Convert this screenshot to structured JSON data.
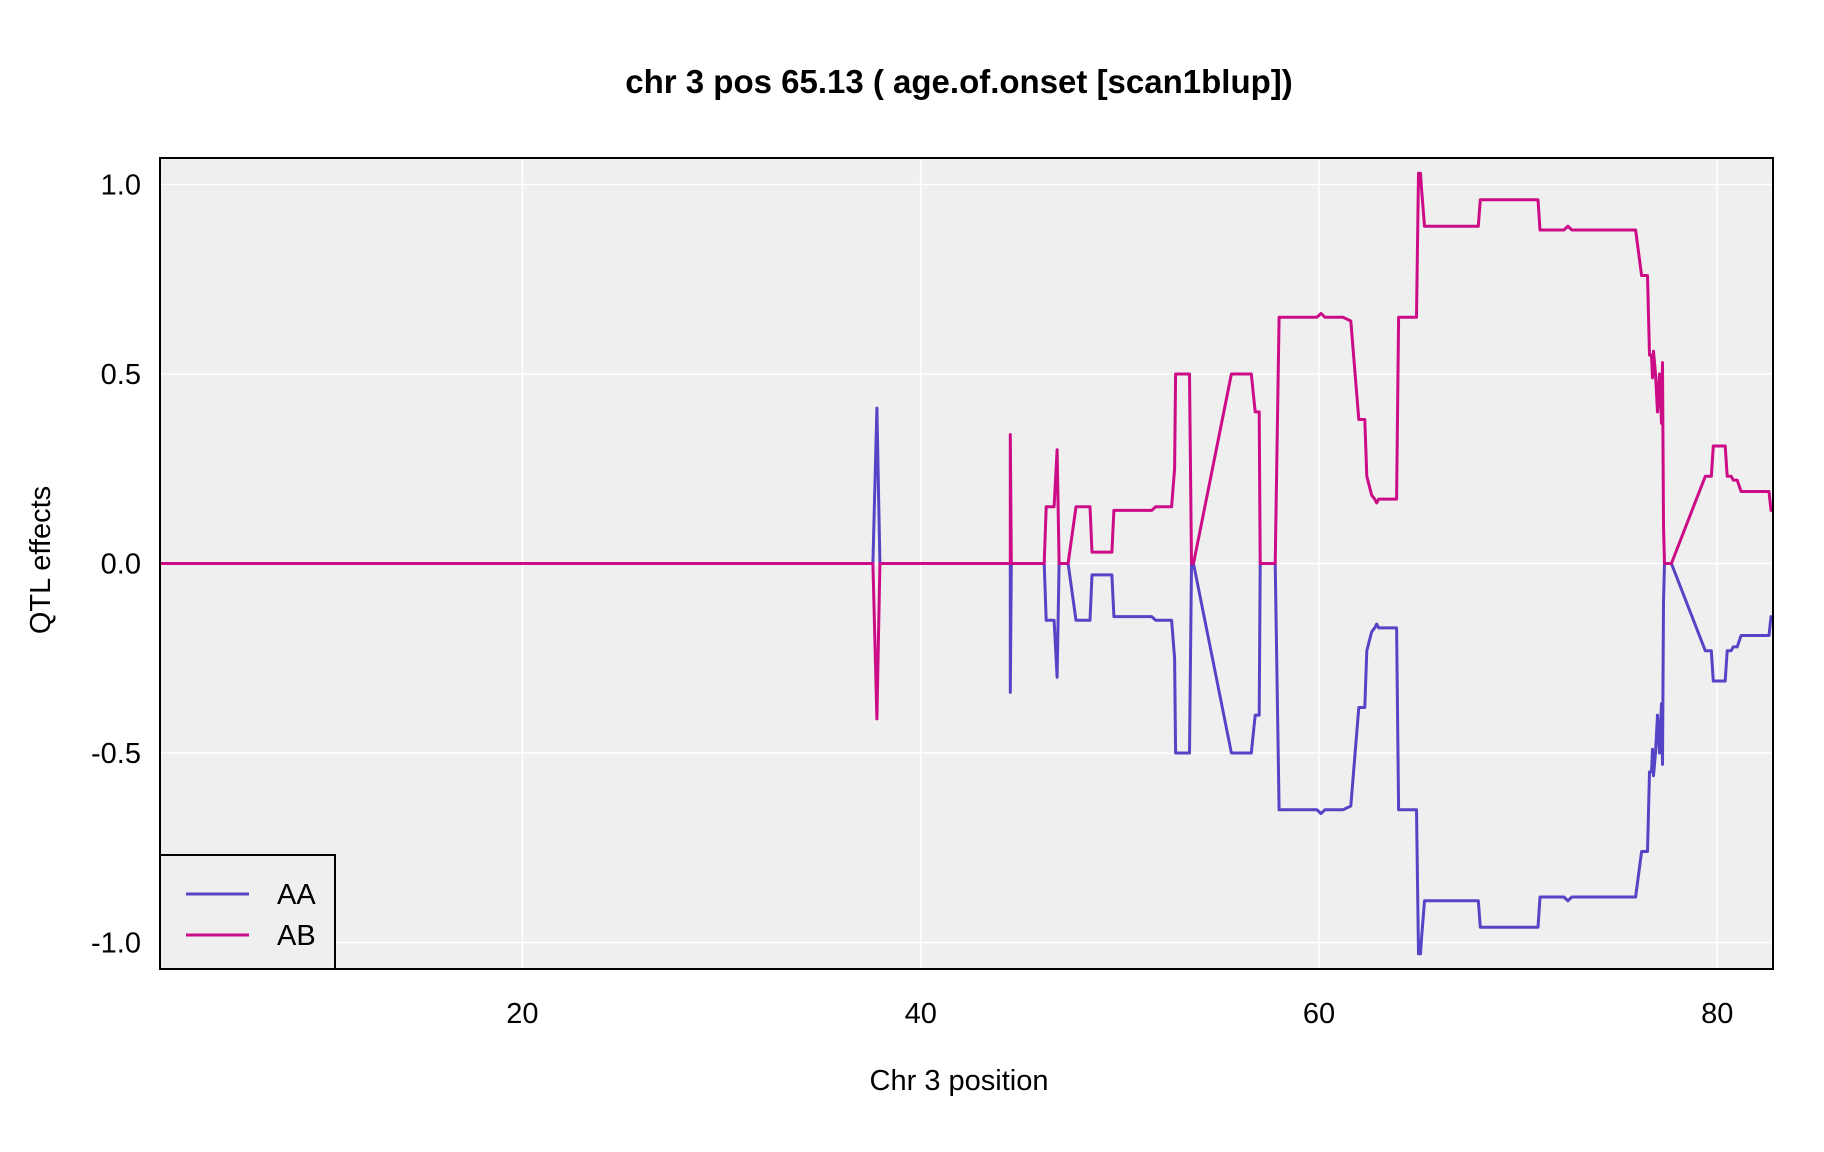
{
  "chart_data": {
    "type": "line",
    "title": "chr 3 pos 65.13 ( age.of.onset  [scan1blup])",
    "xlabel": "Chr 3 position",
    "ylabel": "QTL effects",
    "xlim": [
      1.8,
      82.8
    ],
    "ylim": [
      -1.07,
      1.07
    ],
    "x_ticks": [
      20,
      40,
      60,
      80
    ],
    "y_ticks": [
      -1.0,
      -0.5,
      0.0,
      0.5,
      1.0
    ],
    "y_tick_labels": [
      "-1.0",
      "-0.5",
      "0.0",
      "0.5",
      "1.0"
    ],
    "grid": true,
    "legend_position": "bottom-left",
    "background": "#efefef",
    "series": [
      {
        "name": "AA",
        "color": "#5544c5",
        "points": [
          [
            1.8,
            0
          ],
          [
            37.6,
            0
          ],
          [
            37.8,
            0.41
          ],
          [
            37.95,
            0
          ],
          [
            44.5,
            0
          ],
          [
            44.5,
            -0.34
          ],
          [
            44.55,
            0
          ],
          [
            46.2,
            0
          ],
          [
            46.3,
            -0.15
          ],
          [
            46.7,
            -0.15
          ],
          [
            46.85,
            -0.3
          ],
          [
            46.95,
            0
          ],
          [
            47.4,
            0
          ],
          [
            47.8,
            -0.15
          ],
          [
            48.5,
            -0.15
          ],
          [
            48.6,
            -0.03
          ],
          [
            49.6,
            -0.03
          ],
          [
            49.7,
            -0.14
          ],
          [
            51.6,
            -0.14
          ],
          [
            51.8,
            -0.15
          ],
          [
            52.6,
            -0.15
          ],
          [
            52.75,
            -0.25
          ],
          [
            52.8,
            -0.5
          ],
          [
            53.5,
            -0.5
          ],
          [
            53.6,
            0
          ],
          [
            53.7,
            0
          ],
          [
            55.6,
            -0.5
          ],
          [
            56.6,
            -0.5
          ],
          [
            56.8,
            -0.4
          ],
          [
            57.0,
            -0.4
          ],
          [
            57.05,
            0
          ],
          [
            57.8,
            0
          ],
          [
            58.0,
            -0.65
          ],
          [
            59.9,
            -0.65
          ],
          [
            60.1,
            -0.66
          ],
          [
            60.3,
            -0.65
          ],
          [
            61.2,
            -0.65
          ],
          [
            61.6,
            -0.64
          ],
          [
            62.0,
            -0.38
          ],
          [
            62.3,
            -0.38
          ],
          [
            62.4,
            -0.23
          ],
          [
            62.65,
            -0.18
          ],
          [
            62.8,
            -0.17
          ],
          [
            62.9,
            -0.16
          ],
          [
            63.0,
            -0.17
          ],
          [
            63.9,
            -0.17
          ],
          [
            64.0,
            -0.65
          ],
          [
            64.9,
            -0.65
          ],
          [
            65.0,
            -1.03
          ],
          [
            65.1,
            -1.03
          ],
          [
            65.15,
            -0.99
          ],
          [
            65.3,
            -0.89
          ],
          [
            66.5,
            -0.89
          ],
          [
            66.6,
            -0.89
          ],
          [
            68.0,
            -0.89
          ],
          [
            68.1,
            -0.96
          ],
          [
            71.0,
            -0.96
          ],
          [
            71.1,
            -0.88
          ],
          [
            72.3,
            -0.88
          ],
          [
            72.5,
            -0.89
          ],
          [
            72.7,
            -0.88
          ],
          [
            75.9,
            -0.88
          ],
          [
            76.2,
            -0.76
          ],
          [
            76.5,
            -0.76
          ],
          [
            76.6,
            -0.55
          ],
          [
            76.7,
            -0.55
          ],
          [
            76.75,
            -0.49
          ],
          [
            76.8,
            -0.56
          ],
          [
            76.9,
            -0.5
          ],
          [
            77.0,
            -0.4
          ],
          [
            77.1,
            -0.5
          ],
          [
            77.2,
            -0.37
          ],
          [
            77.25,
            -0.53
          ],
          [
            77.3,
            -0.1
          ],
          [
            77.35,
            0
          ],
          [
            77.7,
            0
          ],
          [
            79.4,
            -0.23
          ],
          [
            79.7,
            -0.23
          ],
          [
            79.8,
            -0.31
          ],
          [
            80.4,
            -0.31
          ],
          [
            80.5,
            -0.23
          ],
          [
            80.7,
            -0.23
          ],
          [
            80.8,
            -0.22
          ],
          [
            81.0,
            -0.22
          ],
          [
            81.2,
            -0.19
          ],
          [
            82.6,
            -0.19
          ],
          [
            82.7,
            -0.14
          ],
          [
            82.8,
            -0.14
          ]
        ]
      },
      {
        "name": "AB",
        "color": "#cc0c87",
        "points": [
          [
            1.8,
            0
          ],
          [
            37.6,
            0
          ],
          [
            37.8,
            -0.41
          ],
          [
            37.95,
            0
          ],
          [
            44.5,
            0
          ],
          [
            44.5,
            0.34
          ],
          [
            44.55,
            0
          ],
          [
            46.2,
            0
          ],
          [
            46.3,
            0.15
          ],
          [
            46.7,
            0.15
          ],
          [
            46.85,
            0.3
          ],
          [
            46.95,
            0
          ],
          [
            47.4,
            0
          ],
          [
            47.8,
            0.15
          ],
          [
            48.5,
            0.15
          ],
          [
            48.6,
            0.03
          ],
          [
            49.6,
            0.03
          ],
          [
            49.7,
            0.14
          ],
          [
            51.6,
            0.14
          ],
          [
            51.8,
            0.15
          ],
          [
            52.6,
            0.15
          ],
          [
            52.75,
            0.25
          ],
          [
            52.8,
            0.5
          ],
          [
            53.5,
            0.5
          ],
          [
            53.6,
            0
          ],
          [
            53.7,
            0
          ],
          [
            55.6,
            0.5
          ],
          [
            56.6,
            0.5
          ],
          [
            56.8,
            0.4
          ],
          [
            57.0,
            0.4
          ],
          [
            57.05,
            0
          ],
          [
            57.8,
            0
          ],
          [
            58.0,
            0.65
          ],
          [
            59.9,
            0.65
          ],
          [
            60.1,
            0.66
          ],
          [
            60.3,
            0.65
          ],
          [
            61.2,
            0.65
          ],
          [
            61.6,
            0.64
          ],
          [
            62.0,
            0.38
          ],
          [
            62.3,
            0.38
          ],
          [
            62.4,
            0.23
          ],
          [
            62.65,
            0.18
          ],
          [
            62.8,
            0.17
          ],
          [
            62.9,
            0.16
          ],
          [
            63.0,
            0.17
          ],
          [
            63.9,
            0.17
          ],
          [
            64.0,
            0.65
          ],
          [
            64.9,
            0.65
          ],
          [
            65.0,
            1.03
          ],
          [
            65.1,
            1.03
          ],
          [
            65.15,
            0.99
          ],
          [
            65.3,
            0.89
          ],
          [
            66.5,
            0.89
          ],
          [
            66.6,
            0.89
          ],
          [
            68.0,
            0.89
          ],
          [
            68.1,
            0.96
          ],
          [
            71.0,
            0.96
          ],
          [
            71.1,
            0.88
          ],
          [
            72.3,
            0.88
          ],
          [
            72.5,
            0.89
          ],
          [
            72.7,
            0.88
          ],
          [
            75.9,
            0.88
          ],
          [
            76.2,
            0.76
          ],
          [
            76.5,
            0.76
          ],
          [
            76.6,
            0.55
          ],
          [
            76.7,
            0.55
          ],
          [
            76.75,
            0.49
          ],
          [
            76.8,
            0.56
          ],
          [
            76.9,
            0.5
          ],
          [
            77.0,
            0.4
          ],
          [
            77.1,
            0.5
          ],
          [
            77.2,
            0.37
          ],
          [
            77.25,
            0.53
          ],
          [
            77.3,
            0.1
          ],
          [
            77.35,
            0
          ],
          [
            77.7,
            0
          ],
          [
            79.4,
            0.23
          ],
          [
            79.7,
            0.23
          ],
          [
            79.8,
            0.31
          ],
          [
            80.4,
            0.31
          ],
          [
            80.5,
            0.23
          ],
          [
            80.7,
            0.23
          ],
          [
            80.8,
            0.22
          ],
          [
            81.0,
            0.22
          ],
          [
            81.2,
            0.19
          ],
          [
            82.6,
            0.19
          ],
          [
            82.7,
            0.14
          ],
          [
            82.8,
            0.14
          ]
        ]
      }
    ]
  }
}
